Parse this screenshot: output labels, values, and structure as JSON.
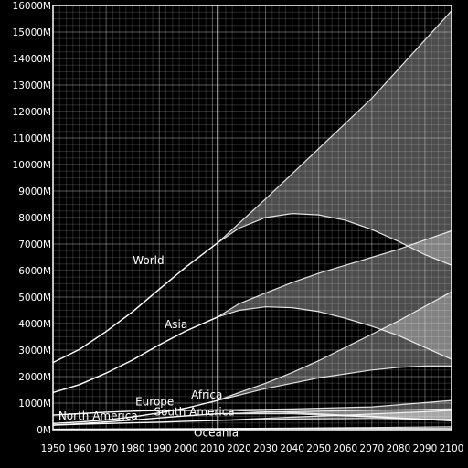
{
  "chart_data": {
    "type": "line",
    "title": "",
    "xlabel": "",
    "ylabel": "",
    "xlim": [
      1950,
      2100
    ],
    "ylim": [
      0,
      16000
    ],
    "x_ticks": [
      "1950",
      "1960",
      "1970",
      "1980",
      "1990",
      "2000",
      "2010",
      "2020",
      "2030",
      "2040",
      "2050",
      "2060",
      "2070",
      "2080",
      "2090",
      "2100"
    ],
    "y_ticks": [
      "0M",
      "1000M",
      "2000M",
      "3000M",
      "4000M",
      "5000M",
      "6000M",
      "7000M",
      "8000M",
      "9000M",
      "10000M",
      "11000M",
      "12000M",
      "13000M",
      "14000M",
      "15000M",
      "16000M"
    ],
    "grid": true,
    "reference_line_x": 2012,
    "colors": {
      "background": "#000000",
      "line": "#ffffff",
      "band_fill": "#ffffff"
    },
    "bands": [
      {
        "name": "World",
        "label": "World",
        "label_at": [
          1980,
          6250
        ],
        "high": [
          [
            2012,
            7050
          ],
          [
            2030,
            8700
          ],
          [
            2050,
            10600
          ],
          [
            2070,
            12500
          ],
          [
            2090,
            14700
          ],
          [
            2100,
            15800
          ]
        ],
        "low": [
          [
            2012,
            7050
          ],
          [
            2020,
            7600
          ],
          [
            2030,
            8000
          ],
          [
            2040,
            8150
          ],
          [
            2050,
            8100
          ],
          [
            2060,
            7900
          ],
          [
            2070,
            7550
          ],
          [
            2080,
            7100
          ],
          [
            2090,
            6600
          ],
          [
            2100,
            6200
          ]
        ]
      },
      {
        "name": "Asia",
        "label": "Asia",
        "label_at": [
          1992,
          3820
        ],
        "high": [
          [
            2012,
            4250
          ],
          [
            2020,
            4750
          ],
          [
            2030,
            5150
          ],
          [
            2040,
            5550
          ],
          [
            2050,
            5900
          ],
          [
            2060,
            6200
          ],
          [
            2070,
            6500
          ],
          [
            2080,
            6800
          ],
          [
            2090,
            7150
          ],
          [
            2100,
            7500
          ]
        ],
        "low": [
          [
            2012,
            4250
          ],
          [
            2020,
            4500
          ],
          [
            2030,
            4630
          ],
          [
            2040,
            4600
          ],
          [
            2050,
            4450
          ],
          [
            2060,
            4200
          ],
          [
            2070,
            3900
          ],
          [
            2080,
            3550
          ],
          [
            2090,
            3100
          ],
          [
            2100,
            2650
          ]
        ]
      },
      {
        "name": "Africa",
        "label": "Africa",
        "label_at": [
          2002,
          1180
        ],
        "high": [
          [
            2012,
            1100
          ],
          [
            2020,
            1400
          ],
          [
            2030,
            1750
          ],
          [
            2040,
            2150
          ],
          [
            2050,
            2600
          ],
          [
            2060,
            3100
          ],
          [
            2070,
            3600
          ],
          [
            2080,
            4100
          ],
          [
            2090,
            4650
          ],
          [
            2100,
            5200
          ]
        ],
        "low": [
          [
            2012,
            1100
          ],
          [
            2020,
            1300
          ],
          [
            2030,
            1550
          ],
          [
            2040,
            1750
          ],
          [
            2050,
            1950
          ],
          [
            2060,
            2100
          ],
          [
            2070,
            2250
          ],
          [
            2080,
            2350
          ],
          [
            2090,
            2400
          ],
          [
            2100,
            2400
          ]
        ]
      },
      {
        "name": "Europe",
        "label": "Europe",
        "label_at": [
          1981,
          920
        ],
        "high": [
          [
            2012,
            740
          ],
          [
            2040,
            780
          ],
          [
            2070,
            860
          ],
          [
            2100,
            1100
          ]
        ],
        "low": [
          [
            2012,
            740
          ],
          [
            2040,
            640
          ],
          [
            2070,
            500
          ],
          [
            2100,
            330
          ]
        ]
      },
      {
        "name": "North America",
        "label": "North America",
        "label_at": [
          1952,
          380
        ],
        "high": [
          [
            2012,
            350
          ],
          [
            2040,
            470
          ],
          [
            2070,
            590
          ],
          [
            2100,
            720
          ]
        ],
        "low": [
          [
            2012,
            350
          ],
          [
            2040,
            400
          ],
          [
            2070,
            420
          ],
          [
            2100,
            380
          ]
        ]
      },
      {
        "name": "South America",
        "label": "South America",
        "label_at": [
          1988,
          540
        ],
        "high": [
          [
            2012,
            600
          ],
          [
            2040,
            680
          ],
          [
            2070,
            730
          ],
          [
            2100,
            780
          ]
        ],
        "low": [
          [
            2012,
            600
          ],
          [
            2040,
            600
          ],
          [
            2070,
            480
          ],
          [
            2100,
            330
          ]
        ]
      },
      {
        "name": "Oceania",
        "label": "Oceania",
        "label_at": [
          2003,
          -250
        ],
        "high": [
          [
            2012,
            37
          ],
          [
            2040,
            60
          ],
          [
            2070,
            80
          ],
          [
            2100,
            110
          ]
        ],
        "low": [
          [
            2012,
            37
          ],
          [
            2040,
            45
          ],
          [
            2070,
            47
          ],
          [
            2100,
            45
          ]
        ]
      }
    ],
    "series": [
      {
        "name": "World",
        "x": [
          1950,
          1960,
          1970,
          1980,
          1990,
          2000,
          2012
        ],
        "y": [
          2530,
          3030,
          3700,
          4450,
          5300,
          6130,
          7050
        ]
      },
      {
        "name": "Asia",
        "x": [
          1950,
          1960,
          1970,
          1980,
          1990,
          2000,
          2012
        ],
        "y": [
          1400,
          1700,
          2130,
          2630,
          3200,
          3720,
          4250
        ]
      },
      {
        "name": "Africa",
        "x": [
          1950,
          1960,
          1970,
          1980,
          1990,
          2000,
          2012
        ],
        "y": [
          230,
          285,
          365,
          480,
          630,
          810,
          1100
        ]
      },
      {
        "name": "Europe",
        "x": [
          1950,
          1960,
          1970,
          1980,
          1990,
          2000,
          2012
        ],
        "y": [
          550,
          605,
          660,
          695,
          720,
          727,
          740
        ]
      },
      {
        "name": "South America",
        "x": [
          1950,
          1960,
          1970,
          1980,
          1990,
          2000,
          2012
        ],
        "y": [
          170,
          220,
          290,
          360,
          440,
          520,
          600
        ]
      },
      {
        "name": "North America",
        "x": [
          1950,
          1960,
          1970,
          1980,
          1990,
          2000,
          2012
        ],
        "y": [
          170,
          205,
          230,
          255,
          280,
          315,
          350
        ]
      },
      {
        "name": "Oceania",
        "x": [
          1950,
          1960,
          1970,
          1980,
          1990,
          2000,
          2012
        ],
        "y": [
          13,
          16,
          20,
          23,
          27,
          31,
          37
        ]
      }
    ]
  }
}
